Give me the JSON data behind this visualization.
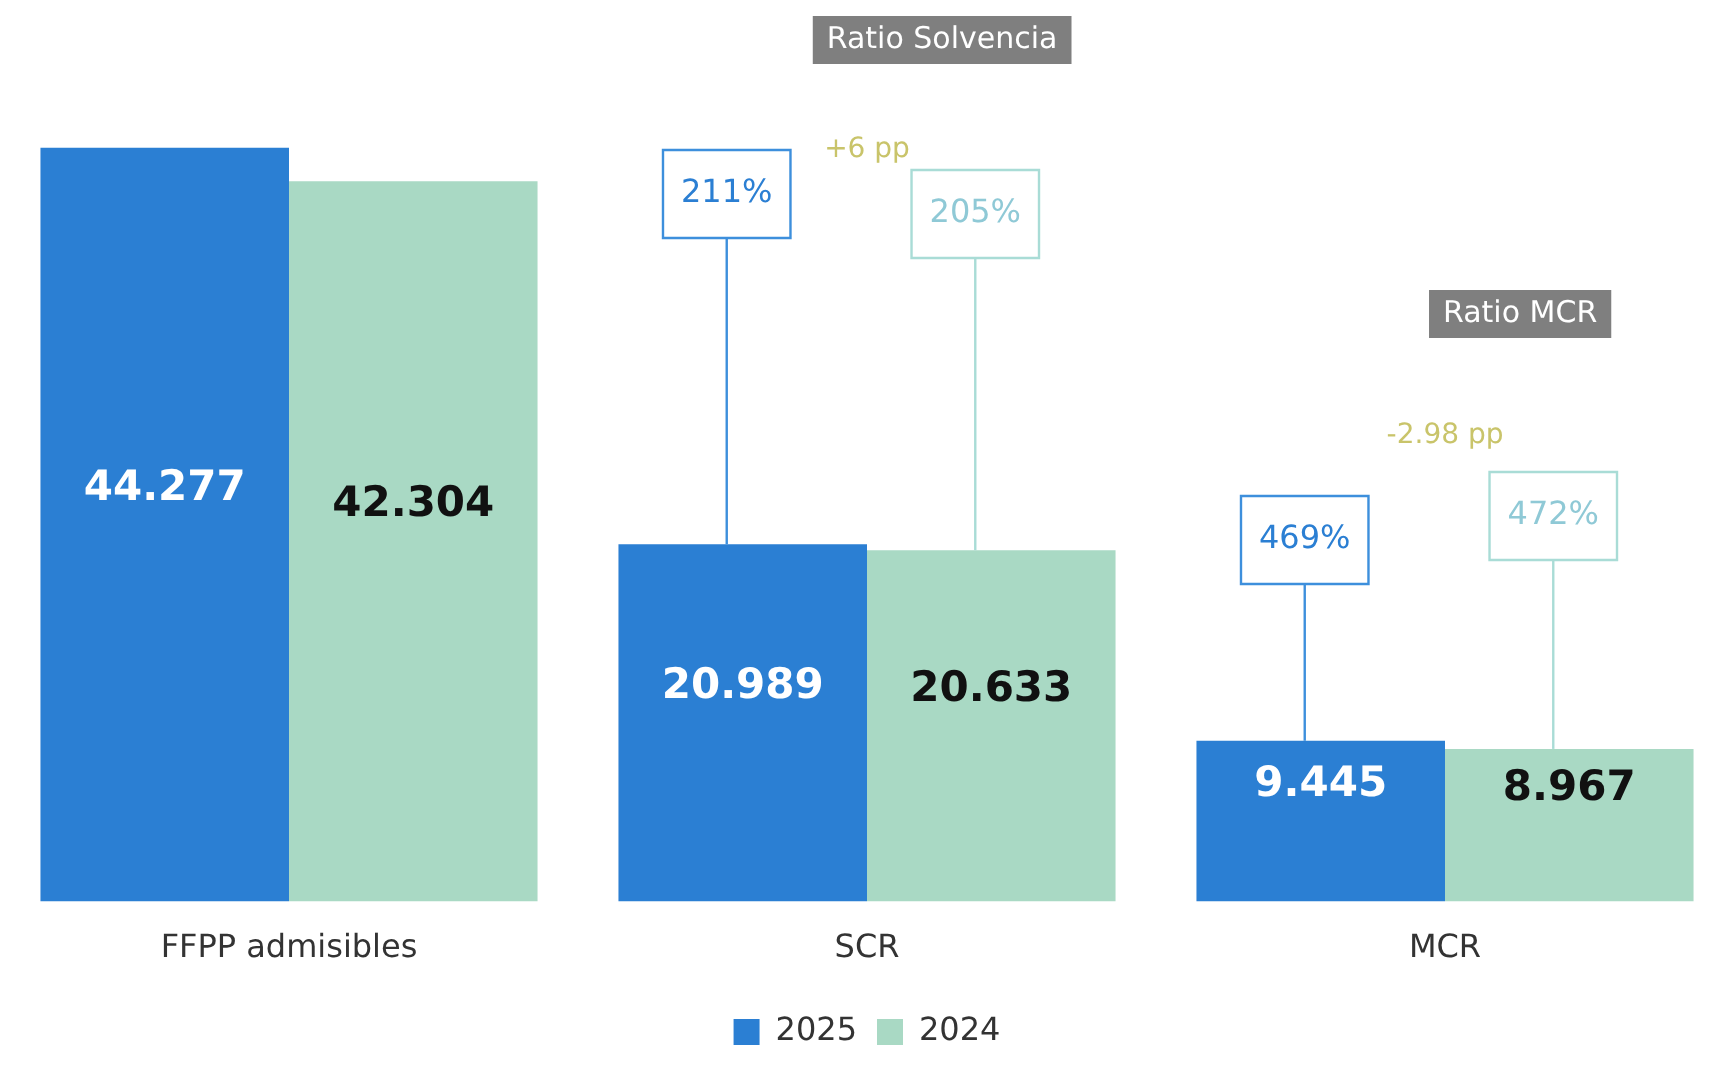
{
  "chart_data": {
    "type": "bar",
    "categories": [
      "FFPP admisibles",
      "SCR",
      "MCR"
    ],
    "series": [
      {
        "name": "2025",
        "color": "#2b7fd3",
        "values": [
          44.277,
          20.989,
          9.445
        ]
      },
      {
        "name": "2024",
        "color": "#a9d9c4",
        "values": [
          42.304,
          20.633,
          8.967
        ]
      }
    ],
    "annotations": [
      "Ratio Solvencia",
      "211%",
      "+6 pp",
      "205%",
      "Ratio MCR",
      "469%",
      "-2.98 pp",
      "472%"
    ],
    "data_labels": true,
    "legend": "bottom",
    "grid": false
  }
}
